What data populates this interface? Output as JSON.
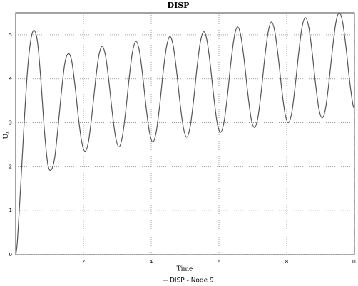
{
  "chart_data": {
    "type": "line",
    "title": "DISP",
    "x_label": "Time",
    "y_label": "U",
    "y_label_subscript": "x",
    "xlim": [
      0,
      10
    ],
    "ylim": [
      0,
      5.5
    ],
    "xticks": [
      2,
      4,
      6,
      8,
      10
    ],
    "yticks": [
      0,
      1,
      2,
      3,
      4,
      5
    ],
    "grid": true,
    "x": [
      0,
      0.05,
      0.15,
      0.25,
      0.35,
      0.45,
      0.55,
      0.65,
      0.75,
      0.85,
      0.95,
      1.05,
      1.15,
      1.25,
      1.35,
      1.45,
      1.55,
      1.65,
      1.75,
      1.85,
      1.95,
      2.05,
      2.15,
      2.25,
      2.35,
      2.45,
      2.55,
      2.65,
      2.75,
      2.85,
      2.95,
      3.05,
      3.15,
      3.25,
      3.35,
      3.45,
      3.55,
      3.65,
      3.75,
      3.85,
      3.95,
      4.05,
      4.15,
      4.25,
      4.35,
      4.45,
      4.55,
      4.65,
      4.75,
      4.85,
      4.95,
      5.05,
      5.15,
      5.25,
      5.35,
      5.45,
      5.55,
      5.65,
      5.75,
      5.85,
      5.95,
      6.05,
      6.15,
      6.25,
      6.35,
      6.45,
      6.55,
      6.65,
      6.75,
      6.85,
      6.95,
      7.05,
      7.15,
      7.25,
      7.35,
      7.45,
      7.55,
      7.65,
      7.75,
      7.85,
      7.95,
      8.05,
      8.15,
      8.25,
      8.35,
      8.45,
      8.55,
      8.65,
      8.75,
      8.85,
      8.95,
      9.05,
      9.15,
      9.25,
      9.35,
      9.45,
      9.55,
      9.65,
      9.75,
      9.85,
      9.95,
      10
    ],
    "series": [
      {
        "name": "DISP - Node 9",
        "color": "#555555",
        "values": [
          0,
          0.3,
          1.6,
          3.0,
          4.2,
          4.9,
          5.1,
          4.8,
          3.9,
          2.8,
          2.05,
          1.93,
          2.2,
          2.9,
          3.7,
          4.35,
          4.57,
          4.42,
          3.85,
          3.13,
          2.56,
          2.35,
          2.58,
          3.18,
          3.91,
          4.51,
          4.74,
          4.53,
          3.95,
          3.24,
          2.67,
          2.45,
          2.69,
          3.28,
          4.02,
          4.62,
          4.85,
          4.64,
          4.06,
          3.35,
          2.78,
          2.56,
          2.8,
          3.39,
          4.13,
          4.72,
          4.96,
          4.75,
          4.17,
          3.46,
          2.89,
          2.67,
          2.91,
          3.5,
          4.24,
          4.83,
          5.07,
          4.86,
          4.28,
          3.57,
          2.99,
          2.78,
          3.02,
          3.61,
          4.35,
          4.94,
          5.18,
          4.96,
          4.39,
          3.68,
          3.1,
          2.89,
          3.12,
          3.72,
          4.46,
          5.05,
          5.29,
          5.07,
          4.5,
          3.79,
          3.21,
          3.0,
          3.23,
          3.83,
          4.56,
          5.16,
          5.39,
          5.18,
          4.61,
          3.9,
          3.32,
          3.11,
          3.34,
          3.94,
          4.67,
          5.27,
          5.5,
          5.29,
          4.72,
          4.0,
          3.43,
          3.32
        ]
      }
    ]
  }
}
